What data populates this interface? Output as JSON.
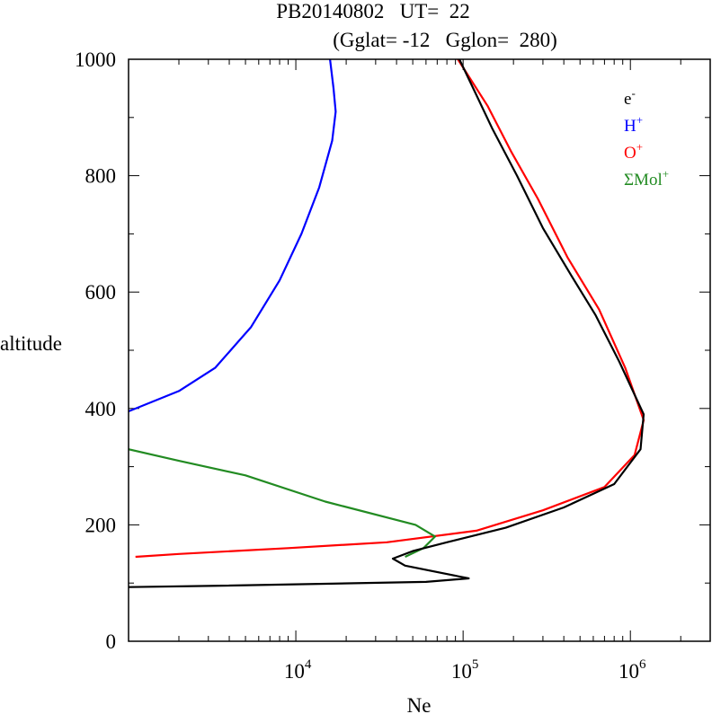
{
  "chart_data": {
    "type": "line",
    "title_line1": "PB20140802   UT=  22",
    "title_line2": "(Gglat= -12   Gglon=  280)",
    "xlabel": "Ne",
    "ylabel": "altitude",
    "xscale": "log",
    "xlim": [
      1000,
      3000000
    ],
    "ylim": [
      0,
      1000
    ],
    "y_ticks": [
      0,
      200,
      400,
      600,
      800,
      1000
    ],
    "y_tick_labels": [
      "0",
      "200",
      "400",
      "600",
      "800",
      "1000"
    ],
    "x_ticks": [
      {
        "base": "10",
        "exp": "4",
        "value": 10000
      },
      {
        "base": "10",
        "exp": "5",
        "value": 100000
      },
      {
        "base": "10",
        "exp": "6",
        "value": 1000000
      }
    ],
    "grid": false,
    "legend_position": "top-right",
    "legend": [
      {
        "base": "e",
        "sup": "-",
        "color": "#000000"
      },
      {
        "base": "H",
        "sup": "+",
        "color": "#0000ff"
      },
      {
        "base": "O",
        "sup": "+",
        "color": "#ff0000"
      },
      {
        "base": "ΣMol",
        "sup": "+",
        "color": "#228b22"
      }
    ],
    "series": [
      {
        "color": "#0000ff",
        "points": [
          [
            16000,
            1000
          ],
          [
            16800,
            950
          ],
          [
            17300,
            910
          ],
          [
            16500,
            860
          ],
          [
            13800,
            780
          ],
          [
            10800,
            700
          ],
          [
            8000,
            620
          ],
          [
            5400,
            540
          ],
          [
            3300,
            470
          ],
          [
            2000,
            430
          ],
          [
            1000,
            395
          ]
        ]
      },
      {
        "color": "#ff0000",
        "points": [
          [
            93000,
            1000
          ],
          [
            140000,
            920
          ],
          [
            195000,
            840
          ],
          [
            280000,
            760
          ],
          [
            420000,
            660
          ],
          [
            650000,
            570
          ],
          [
            930000,
            470
          ],
          [
            1200000,
            380
          ],
          [
            1060000,
            320
          ],
          [
            700000,
            265
          ],
          [
            300000,
            225
          ],
          [
            120000,
            190
          ],
          [
            35000,
            170
          ],
          [
            9000,
            160
          ],
          [
            2000,
            150
          ],
          [
            1100,
            145
          ]
        ]
      },
      {
        "color": "#228b22",
        "points": [
          [
            1000,
            330
          ],
          [
            2000,
            310
          ],
          [
            5000,
            285
          ],
          [
            15000,
            240
          ],
          [
            52000,
            200
          ],
          [
            68000,
            180
          ],
          [
            58000,
            160
          ],
          [
            45000,
            145
          ]
        ]
      },
      {
        "color": "#000000",
        "points": [
          [
            95000,
            1000
          ],
          [
            115000,
            950
          ],
          [
            150000,
            880
          ],
          [
            210000,
            800
          ],
          [
            300000,
            710
          ],
          [
            440000,
            630
          ],
          [
            620000,
            560
          ],
          [
            860000,
            480
          ],
          [
            1200000,
            390
          ],
          [
            1150000,
            330
          ],
          [
            800000,
            270
          ],
          [
            400000,
            230
          ],
          [
            180000,
            195
          ],
          [
            80000,
            170
          ],
          [
            50000,
            155
          ],
          [
            38000,
            142
          ],
          [
            45000,
            130
          ],
          [
            108000,
            108
          ],
          [
            60000,
            102
          ],
          [
            3000,
            95
          ],
          [
            1000,
            93
          ]
        ]
      }
    ]
  }
}
